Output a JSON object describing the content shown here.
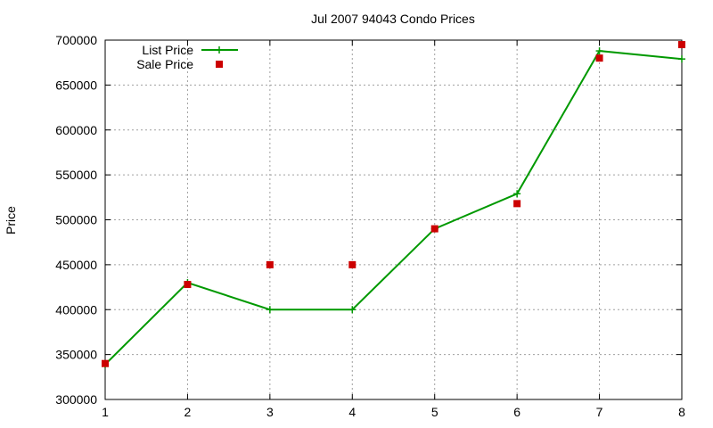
{
  "chart_data": {
    "type": "line",
    "title": "Jul 2007 94043 Condo Prices",
    "xlabel": "",
    "ylabel": "Price",
    "xlim": [
      1,
      8
    ],
    "ylim": [
      300000,
      700000
    ],
    "x_ticks": [
      "1",
      "2",
      "3",
      "4",
      "5",
      "6",
      "7",
      "8"
    ],
    "y_ticks": [
      "300000",
      "350000",
      "400000",
      "450000",
      "500000",
      "550000",
      "600000",
      "650000",
      "700000"
    ],
    "grid": true,
    "legend_position": "top-left",
    "series": [
      {
        "name": "List Price",
        "style": "linespoints",
        "marker": "plus",
        "color": "#009900",
        "x": [
          1,
          2,
          3,
          4,
          5,
          6,
          7,
          8
        ],
        "y": [
          339000,
          430000,
          400000,
          400000,
          490000,
          529000,
          688000,
          679000
        ]
      },
      {
        "name": "Sale Price",
        "style": "points",
        "marker": "square",
        "color": "#cc0000",
        "x": [
          1,
          2,
          3,
          4,
          5,
          6,
          7,
          8
        ],
        "y": [
          340000,
          428000,
          450000,
          450000,
          490000,
          518000,
          680000,
          695000
        ]
      }
    ]
  }
}
